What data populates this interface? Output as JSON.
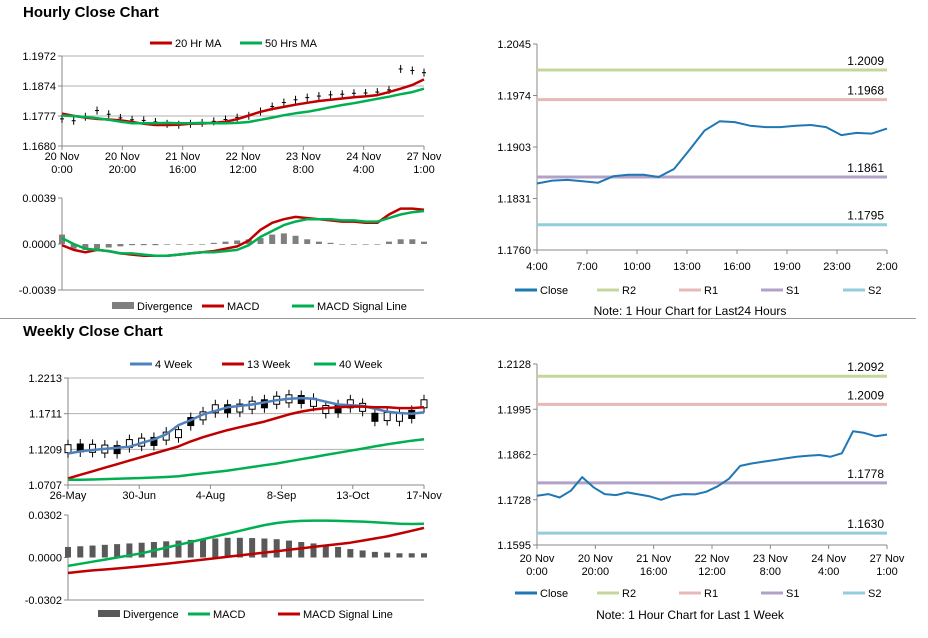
{
  "sections": {
    "hourly_title": "Hourly Close Chart",
    "weekly_title": "Weekly Close Chart"
  },
  "chart_data": [
    {
      "id": "hourly-ma",
      "type": "line",
      "title": "",
      "legend": [
        "20 Hr MA",
        "50 Hrs MA"
      ],
      "yticks": [
        "1.1972",
        "1.1874",
        "1.1777",
        "1.1680"
      ],
      "ylim": [
        1.168,
        1.1972
      ],
      "xticks": [
        [
          "20 Nov",
          "0:00"
        ],
        [
          "20 Nov",
          "20:00"
        ],
        [
          "21 Nov",
          "16:00"
        ],
        [
          "22 Nov",
          "12:00"
        ],
        [
          "23 Nov",
          "8:00"
        ],
        [
          "24 Nov",
          "4:00"
        ],
        [
          "27 Nov",
          "1:00"
        ]
      ],
      "close": [
        1.1768,
        1.1762,
        1.1775,
        1.1795,
        1.1783,
        1.1771,
        1.1765,
        1.1763,
        1.1758,
        1.1752,
        1.1749,
        1.1752,
        1.1755,
        1.176,
        1.1766,
        1.1772,
        1.1778,
        1.1792,
        1.1808,
        1.1821,
        1.183,
        1.1837,
        1.1842,
        1.1846,
        1.1848,
        1.1851,
        1.1852,
        1.1855,
        1.1862,
        1.193,
        1.1925,
        1.1918
      ],
      "series": [
        {
          "name": "20 Hr MA",
          "color": "#c00000",
          "values": [
            1.1785,
            1.1778,
            1.1772,
            1.1768,
            1.1766,
            1.1763,
            1.1758,
            1.1752,
            1.1748,
            1.1748,
            1.1749,
            1.1752,
            1.1753,
            1.1755,
            1.1759,
            1.1767,
            1.1779,
            1.1791,
            1.18,
            1.1807,
            1.1814,
            1.182,
            1.1826,
            1.183,
            1.1834,
            1.1838,
            1.1841,
            1.1845,
            1.1855,
            1.1866,
            1.1878,
            1.1896
          ]
        },
        {
          "name": "50 Hrs MA",
          "color": "#00b050",
          "values": [
            1.1779,
            1.1777,
            1.1774,
            1.177,
            1.1765,
            1.1759,
            1.1754,
            1.1754,
            1.1754,
            1.1755,
            1.1754,
            1.1754,
            1.1755,
            1.1754,
            1.1754,
            1.1755,
            1.1758,
            1.1765,
            1.1772,
            1.178,
            1.1786,
            1.1791,
            1.1798,
            1.1806,
            1.1813,
            1.1819,
            1.1826,
            1.1833,
            1.184,
            1.1848,
            1.1855,
            1.1866
          ]
        }
      ]
    },
    {
      "id": "hourly-macd",
      "type": "line",
      "title": "",
      "legend": [
        "Divergence",
        "MACD",
        "MACD Signal Line"
      ],
      "yticks": [
        "0.0039",
        "0.0000",
        "-0.0039"
      ],
      "ylim": [
        -0.0039,
        0.0039
      ],
      "series": [
        {
          "name": "Divergence",
          "color": "#7f7f7f",
          "values": [
            0.0008,
            -0.0004,
            -0.0005,
            -0.0004,
            -0.0003,
            -0.0002,
            -0.0001,
            -0.0001,
            -0.0001,
            0.0,
            0.0,
            0.0,
            0.0,
            0.0001,
            0.0002,
            0.0003,
            0.0004,
            0.0005,
            0.0008,
            0.0009,
            0.0007,
            0.0004,
            0.0002,
            0.0001,
            0.0,
            0.0,
            0.0,
            0.0,
            0.0002,
            0.0004,
            0.0004,
            0.0002
          ]
        },
        {
          "name": "MACD",
          "color": "#c00000",
          "values": [
            -0.0001,
            -0.0005,
            -0.0007,
            -0.0005,
            -0.0006,
            -0.0008,
            -0.0009,
            -0.001,
            -0.001,
            -0.001,
            -0.0009,
            -0.0008,
            -0.0007,
            -0.0006,
            -0.0004,
            -0.0002,
            0.0003,
            0.0012,
            0.0018,
            0.0021,
            0.0023,
            0.0022,
            0.0021,
            0.002,
            0.0019,
            0.0019,
            0.0018,
            0.0018,
            0.0025,
            0.003,
            0.003,
            0.0029
          ]
        },
        {
          "name": "MACD Signal Line",
          "color": "#00b050",
          "values": [
            0.0005,
            0.0,
            -0.0004,
            -0.0005,
            -0.0006,
            -0.0008,
            -0.0008,
            -0.0009,
            -0.001,
            -0.001,
            -0.0009,
            -0.0008,
            -0.0007,
            -0.0007,
            -0.0006,
            -0.0005,
            -0.0001,
            0.0006,
            0.0011,
            0.0016,
            0.0019,
            0.0021,
            0.0021,
            0.0021,
            0.002,
            0.002,
            0.0019,
            0.0019,
            0.0022,
            0.0025,
            0.0027,
            0.0028
          ]
        }
      ]
    },
    {
      "id": "hourly-pivot",
      "type": "line",
      "title": "",
      "note": "Note: 1 Hour Chart for Last24 Hours",
      "legend": [
        "Close",
        "R2",
        "R1",
        "S1",
        "S2"
      ],
      "yticks": [
        "1.2045",
        "1.1974",
        "1.1903",
        "1.1831",
        "1.1760"
      ],
      "ylim": [
        1.176,
        1.2045
      ],
      "xticks": [
        "4:00",
        "7:00",
        "10:00",
        "13:00",
        "16:00",
        "19:00",
        "23:00",
        "2:00"
      ],
      "levels": [
        {
          "name": "R2",
          "value": 1.2009,
          "label": "1.2009",
          "color": "#c4d79b"
        },
        {
          "name": "R1",
          "value": 1.1968,
          "label": "1.1968",
          "color": "#e6b9b8"
        },
        {
          "name": "S1",
          "value": 1.1861,
          "label": "1.1861",
          "color": "#b1a0c7"
        },
        {
          "name": "S2",
          "value": 1.1795,
          "label": "1.1795",
          "color": "#93cddd"
        }
      ],
      "series": [
        {
          "name": "Close",
          "color": "#1f77b4",
          "values": [
            1.1852,
            1.1856,
            1.1857,
            1.1855,
            1.1853,
            1.1862,
            1.1864,
            1.1864,
            1.1861,
            1.1872,
            1.1898,
            1.1925,
            1.1938,
            1.1937,
            1.1932,
            1.193,
            1.193,
            1.1932,
            1.1933,
            1.193,
            1.1919,
            1.1922,
            1.1921,
            1.1928
          ]
        }
      ]
    },
    {
      "id": "weekly-ma",
      "type": "line",
      "title": "",
      "legend": [
        "4 Week",
        "13 Week",
        "40 Week"
      ],
      "yticks": [
        "1.2213",
        "1.1711",
        "1.1209",
        "1.0707"
      ],
      "ylim": [
        1.0707,
        1.2213
      ],
      "xticks": [
        "26-May",
        "30-Jun",
        "4-Aug",
        "8-Sep",
        "13-Oct",
        "17-Nov"
      ],
      "candles_close": [
        1.1218,
        1.1228,
        1.1223,
        1.1213,
        1.1205,
        1.129,
        1.131,
        1.132,
        1.1395,
        1.143,
        1.16,
        1.168,
        1.178,
        1.178,
        1.179,
        1.183,
        1.185,
        1.19,
        1.192,
        1.191,
        1.187,
        1.177,
        1.178,
        1.185,
        1.18,
        1.166,
        1.167,
        1.166,
        1.17,
        1.185
      ],
      "series": [
        {
          "name": "4 Week",
          "color": "#4f81bd",
          "values": [
            1.115,
            1.118,
            1.12,
            1.1215,
            1.123,
            1.1245,
            1.13,
            1.135,
            1.142,
            1.155,
            1.162,
            1.17,
            1.175,
            1.18,
            1.182,
            1.184,
            1.187,
            1.19,
            1.192,
            1.193,
            1.192,
            1.188,
            1.184,
            1.183,
            1.182,
            1.178,
            1.174,
            1.172,
            1.171,
            1.173
          ]
        },
        {
          "name": "13 Week",
          "color": "#c00000",
          "values": [
            1.08,
            1.085,
            1.09,
            1.095,
            1.1,
            1.105,
            1.11,
            1.115,
            1.12,
            1.125,
            1.132,
            1.138,
            1.143,
            1.148,
            1.152,
            1.156,
            1.16,
            1.165,
            1.17,
            1.174,
            1.177,
            1.179,
            1.18,
            1.181,
            1.181,
            1.18,
            1.18,
            1.179,
            1.179,
            1.18
          ]
        },
        {
          "name": "40 Week",
          "color": "#00b050",
          "values": [
            1.078,
            1.0782,
            1.0785,
            1.079,
            1.0795,
            1.08,
            1.0805,
            1.0812,
            1.082,
            1.083,
            1.085,
            1.087,
            1.089,
            1.091,
            1.0935,
            1.096,
            1.0985,
            1.101,
            1.104,
            1.107,
            1.11,
            1.113,
            1.116,
            1.119,
            1.122,
            1.125,
            1.128,
            1.1305,
            1.133,
            1.135
          ]
        }
      ]
    },
    {
      "id": "weekly-macd",
      "type": "line",
      "title": "",
      "legend": [
        "Divergence",
        "MACD",
        "MACD Signal Line"
      ],
      "yticks": [
        "0.0302",
        "0.0000",
        "-0.0302"
      ],
      "ylim": [
        -0.0302,
        0.0302
      ],
      "series": [
        {
          "name": "Divergence",
          "color": "#595959",
          "values": [
            0.0075,
            0.008,
            0.0085,
            0.009,
            0.0095,
            0.01,
            0.0105,
            0.011,
            0.0115,
            0.012,
            0.0125,
            0.013,
            0.0135,
            0.014,
            0.014,
            0.0138,
            0.0135,
            0.013,
            0.012,
            0.011,
            0.01,
            0.009,
            0.0075,
            0.006,
            0.005,
            0.004,
            0.0035,
            0.003,
            0.003,
            0.003
          ]
        },
        {
          "name": "MACD",
          "color": "#00b050",
          "values": [
            -0.006,
            -0.0045,
            -0.003,
            -0.0015,
            0.0,
            0.0015,
            0.003,
            0.005,
            0.007,
            0.009,
            0.011,
            0.013,
            0.015,
            0.017,
            0.019,
            0.021,
            0.023,
            0.0245,
            0.0255,
            0.026,
            0.0262,
            0.0262,
            0.026,
            0.0258,
            0.0255,
            0.025,
            0.0245,
            0.024,
            0.0238,
            0.024
          ]
        },
        {
          "name": "MACD Signal Line",
          "color": "#c00000",
          "values": [
            -0.011,
            -0.01,
            -0.0092,
            -0.0085,
            -0.0078,
            -0.007,
            -0.0062,
            -0.0053,
            -0.0044,
            -0.0035,
            -0.0025,
            -0.0015,
            -0.0005,
            0.0005,
            0.0015,
            0.0025,
            0.0035,
            0.0045,
            0.0055,
            0.0065,
            0.0075,
            0.0085,
            0.0095,
            0.0105,
            0.012,
            0.0135,
            0.015,
            0.017,
            0.019,
            0.021
          ]
        }
      ]
    },
    {
      "id": "weekly-pivot",
      "type": "line",
      "title": "",
      "note": "Note: 1 Hour Chart for Last 1 Week",
      "legend": [
        "Close",
        "R2",
        "R1",
        "S1",
        "S2"
      ],
      "yticks": [
        "1.2128",
        "1.1995",
        "1.1862",
        "1.1728",
        "1.1595"
      ],
      "ylim": [
        1.1595,
        1.2128
      ],
      "xticks": [
        [
          "20 Nov",
          "0:00"
        ],
        [
          "20 Nov",
          "20:00"
        ],
        [
          "21 Nov",
          "16:00"
        ],
        [
          "22 Nov",
          "12:00"
        ],
        [
          "23 Nov",
          "8:00"
        ],
        [
          "24 Nov",
          "4:00"
        ],
        [
          "27 Nov",
          "1:00"
        ]
      ],
      "levels": [
        {
          "name": "R2",
          "value": 1.2092,
          "label": "1.2092",
          "color": "#c4d79b"
        },
        {
          "name": "R1",
          "value": 1.2009,
          "label": "1.2009",
          "color": "#e6b9b8"
        },
        {
          "name": "S1",
          "value": 1.1778,
          "label": "1.1778",
          "color": "#b1a0c7"
        },
        {
          "name": "S2",
          "value": 1.163,
          "label": "1.1630",
          "color": "#93cddd"
        }
      ],
      "series": [
        {
          "name": "Close",
          "color": "#1f77b4",
          "values": [
            1.174,
            1.1745,
            1.1735,
            1.1755,
            1.1795,
            1.1765,
            1.1745,
            1.1742,
            1.175,
            1.1744,
            1.1738,
            1.1728,
            1.174,
            1.1745,
            1.1744,
            1.1752,
            1.1768,
            1.179,
            1.1828,
            1.1835,
            1.184,
            1.1845,
            1.185,
            1.1855,
            1.1858,
            1.186,
            1.1855,
            1.1865,
            1.193,
            1.1925,
            1.1915,
            1.192
          ]
        }
      ]
    }
  ]
}
